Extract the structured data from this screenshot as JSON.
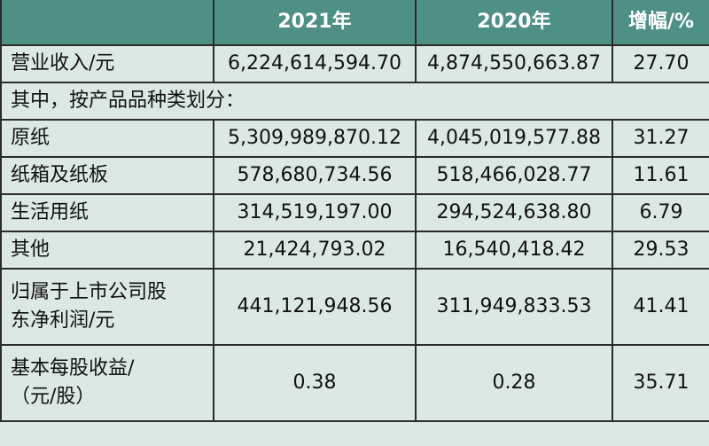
{
  "header": {
    "col_blank": "",
    "col_2021": "2021年",
    "col_2020": "2020年",
    "col_growth": "增幅/%"
  },
  "rows": [
    {
      "label": "营业收入/元",
      "v2021": "6,224,614,594.70",
      "v2020": "4,874,550,663.87",
      "growth": "27.70"
    },
    {
      "section": "其中，按产品品种类划分："
    },
    {
      "label": "原纸",
      "v2021": "5,309,989,870.12",
      "v2020": "4,045,019,577.88",
      "growth": "31.27"
    },
    {
      "label": "纸箱及纸板",
      "v2021": "578,680,734.56",
      "v2020": "518,466,028.77",
      "growth": "11.61"
    },
    {
      "label": "生活用纸",
      "v2021": "314,519,197.00",
      "v2020": "294,524,638.80",
      "growth": "6.79"
    },
    {
      "label": "其他",
      "v2021": "21,424,793.02",
      "v2020": "16,540,418.42",
      "growth": "29.53"
    },
    {
      "label": "归属于上市公司股东净利润/元",
      "label_line1": "归属于上市公司股",
      "label_line2": "东净利润/元",
      "v2021": "441,121,948.56",
      "v2020": "311,949,833.53",
      "growth": "41.41"
    },
    {
      "label": "基本每股收益/（元/股）",
      "label_line1": "基本每股收益/",
      "label_line2": "（元/股）",
      "v2021": "0.38",
      "v2020": "0.28",
      "growth": "35.71"
    }
  ],
  "colors": {
    "header_bg": "#4e8f86",
    "body_bg": "#dbe9e2",
    "border": "#2b2b2b"
  }
}
